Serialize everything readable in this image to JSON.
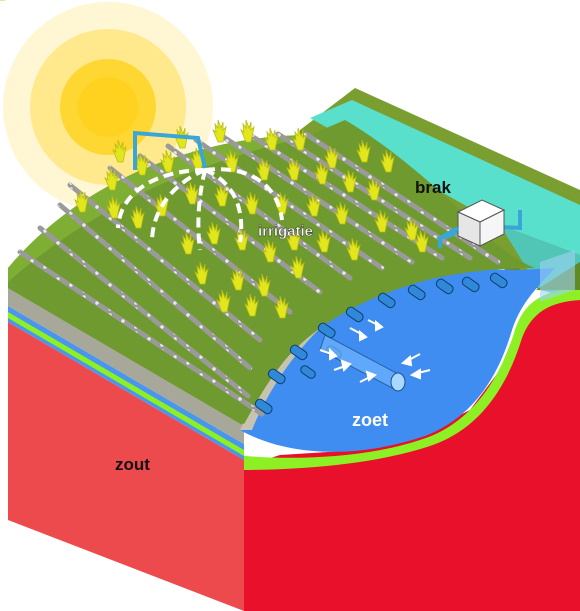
{
  "labels": {
    "brak": "brak",
    "irrigatie": "irrigatie",
    "zoet": "zoet",
    "zout": "zout"
  },
  "colors": {
    "salt": "#e8102a",
    "salt_front": "#ec4a4c",
    "fresh": "#3f8df0",
    "brackish": "#58e0cc",
    "grass": "#6f9a2f",
    "grass_dark": "#5c8226",
    "boundary": "#8cf024",
    "plant": "#e2e61c",
    "sun": "#ffd21f"
  },
  "icons": [
    "sun-icon",
    "pump-icon",
    "well-pipe-icon",
    "drip-tube-icon"
  ]
}
